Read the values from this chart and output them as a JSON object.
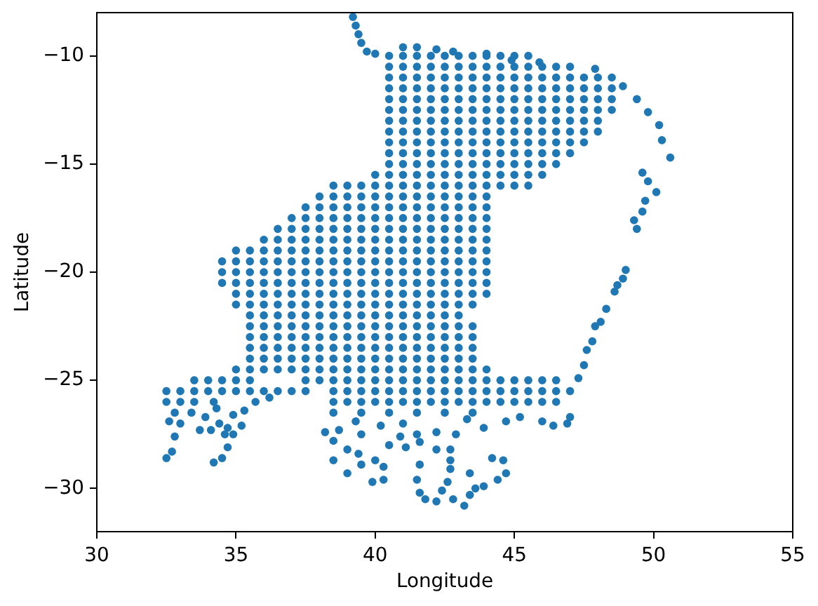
{
  "chart_data": {
    "type": "scatter",
    "xlabel": "Longitude",
    "ylabel": "Latitude",
    "xlim": [
      30,
      55
    ],
    "ylim": [
      -32,
      -8
    ],
    "xticks": [
      30,
      35,
      40,
      45,
      50,
      55
    ],
    "yticks": [
      {
        "value": -30,
        "label": "−30"
      },
      {
        "value": -25,
        "label": "−25"
      },
      {
        "value": -20,
        "label": "−20"
      },
      {
        "value": -15,
        "label": "−15"
      },
      {
        "value": -10,
        "label": "−10"
      }
    ],
    "marker": "circle",
    "series": [
      {
        "color": "#1f77b4",
        "x": [
          40.5,
          41,
          41.5,
          42,
          42.5,
          43,
          43.5,
          44,
          44.5,
          45,
          45.5,
          40.5,
          41,
          41.5,
          42,
          42.5,
          43,
          43.5,
          44,
          44.5,
          45,
          45.5,
          46,
          46.5,
          47,
          40.5,
          41,
          41.5,
          42,
          42.5,
          43,
          43.5,
          44,
          44.5,
          45,
          45.5,
          46,
          46.5,
          47,
          47.5,
          48,
          48.5,
          40.5,
          41,
          41.5,
          42,
          42.5,
          43,
          43.5,
          44,
          44.5,
          45,
          45.5,
          46,
          46.5,
          47,
          47.5,
          48,
          48.5,
          40.5,
          41,
          41.5,
          42,
          42.5,
          43,
          43.5,
          44,
          44.5,
          45,
          45.5,
          46,
          46.5,
          47,
          47.5,
          48,
          48.5,
          40.5,
          41,
          41.5,
          42,
          42.5,
          43,
          43.5,
          44,
          44.5,
          45,
          45.5,
          46,
          46.5,
          47,
          47.5,
          48,
          48.5,
          40.5,
          41,
          41.5,
          42,
          42.5,
          43,
          43.5,
          44,
          44.5,
          45,
          45.5,
          46,
          46.5,
          47,
          47.5,
          48,
          40.5,
          41,
          41.5,
          42,
          42.5,
          43,
          43.5,
          44,
          44.5,
          45,
          45.5,
          46,
          46.5,
          47,
          47.5,
          48,
          40.5,
          41,
          41.5,
          42,
          42.5,
          43,
          43.5,
          44,
          44.5,
          45,
          45.5,
          46,
          46.5,
          47,
          47.5,
          40.5,
          41,
          41.5,
          42,
          42.5,
          43,
          43.5,
          44,
          44.5,
          45,
          45.5,
          46,
          46.5,
          47,
          40.5,
          41,
          41.5,
          42,
          42.5,
          43,
          43.5,
          44,
          44.5,
          45,
          45.5,
          46,
          46.5,
          40,
          40.5,
          41,
          41.5,
          42,
          42.5,
          43,
          43.5,
          44,
          44.5,
          45,
          45.5,
          46,
          38.5,
          39,
          39.5,
          40,
          40.5,
          41,
          41.5,
          42,
          42.5,
          43,
          43.5,
          44,
          44.5,
          45,
          45.5,
          38,
          38.5,
          39,
          39.5,
          40,
          40.5,
          41,
          41.5,
          42,
          42.5,
          43,
          43.5,
          44,
          37.5,
          38,
          38.5,
          39,
          39.5,
          40,
          40.5,
          41,
          41.5,
          42,
          42.5,
          43,
          43.5,
          44,
          37,
          37.5,
          38,
          38.5,
          39,
          39.5,
          40,
          40.5,
          41,
          41.5,
          42,
          42.5,
          43,
          43.5,
          44,
          36.5,
          37,
          37.5,
          38,
          38.5,
          39,
          39.5,
          40,
          40.5,
          41,
          41.5,
          42,
          42.5,
          43,
          43.5,
          44,
          36,
          36.5,
          37,
          37.5,
          38,
          38.5,
          39,
          39.5,
          40,
          40.5,
          41,
          41.5,
          42,
          42.5,
          43,
          43.5,
          44,
          35,
          35.5,
          36,
          36.5,
          37,
          37.5,
          38,
          38.5,
          39,
          39.5,
          40,
          40.5,
          41,
          41.5,
          42,
          42.5,
          43,
          43.5,
          44,
          34.5,
          35,
          35.5,
          36,
          36.5,
          37,
          37.5,
          38,
          38.5,
          39,
          39.5,
          40,
          40.5,
          41,
          41.5,
          42,
          42.5,
          43,
          43.5,
          44,
          34.5,
          35,
          35.5,
          36,
          36.5,
          37,
          37.5,
          38,
          38.5,
          39,
          39.5,
          40,
          40.5,
          41,
          41.5,
          42,
          42.5,
          43,
          43.5,
          44,
          34.5,
          35,
          35.5,
          36,
          36.5,
          37,
          37.5,
          38,
          38.5,
          39,
          39.5,
          40,
          40.5,
          41,
          41.5,
          42,
          42.5,
          43,
          43.5,
          44,
          35,
          35.5,
          36,
          36.5,
          37,
          37.5,
          38,
          38.5,
          39,
          39.5,
          40,
          40.5,
          41,
          41.5,
          42,
          42.5,
          43,
          43.5,
          44,
          35,
          35.5,
          36,
          36.5,
          37,
          37.5,
          38,
          38.5,
          39,
          39.5,
          40,
          40.5,
          41,
          41.5,
          42,
          42.5,
          43,
          43.5,
          35.5,
          36,
          36.5,
          37,
          37.5,
          38,
          38.5,
          39,
          39.5,
          40,
          40.5,
          41,
          41.5,
          42,
          42.5,
          43,
          35.5,
          36,
          36.5,
          37,
          37.5,
          38,
          38.5,
          39,
          39.5,
          40,
          40.5,
          41,
          41.5,
          42,
          42.5,
          43,
          43.5,
          35.5,
          36,
          36.5,
          37,
          37.5,
          38,
          38.5,
          39,
          39.5,
          40,
          40.5,
          41,
          41.5,
          42,
          42.5,
          43,
          43.5,
          35.5,
          36,
          36.5,
          37,
          37.5,
          38,
          38.5,
          39,
          39.5,
          40,
          40.5,
          41,
          41.5,
          42,
          42.5,
          43,
          43.5,
          35.5,
          36,
          36.5,
          37,
          37.5,
          38,
          38.5,
          39,
          39.5,
          40,
          40.5,
          41,
          41.5,
          42,
          42.5,
          43,
          43.5,
          35,
          35.5,
          36,
          36.5,
          37,
          37.5,
          38,
          38.5,
          39,
          39.5,
          40,
          40.5,
          41,
          41.5,
          42,
          42.5,
          43,
          43.5,
          44,
          33.5,
          34,
          34.5,
          35,
          35.5,
          37.5,
          38,
          38.5,
          39,
          39.5,
          40,
          40.5,
          41,
          41.5,
          42,
          42.5,
          43,
          43.5,
          44,
          44.5,
          45,
          45.5,
          46,
          46.5,
          32.5,
          33,
          33.5,
          34,
          34.5,
          35,
          35.5,
          36,
          36.5,
          37,
          37.5,
          38.5,
          39,
          39.5,
          40,
          40.5,
          41,
          41.5,
          42,
          42.5,
          43,
          43.5,
          44,
          44.5,
          45,
          45.5,
          46,
          46.5,
          47,
          32.5,
          33,
          33.5,
          38.5,
          39,
          39.5,
          40,
          40.5,
          41,
          41.5,
          42,
          42.5,
          43,
          43.5,
          44,
          44.5,
          45,
          45.5,
          46,
          46.5,
          38.5,
          39.5,
          40.5,
          41.5,
          42.5,
          43.5,
          39.2,
          39.3,
          39.4,
          39.5,
          39.7,
          40.0,
          41.0,
          41.5,
          42.2,
          42.8,
          44.0,
          44.9,
          45.9,
          47.9,
          48.9,
          49.4,
          49.8,
          50.2,
          50.3,
          50.6,
          49.6,
          49.8,
          50.1,
          49.7,
          49.6,
          49.3,
          49.4,
          49.0,
          48.9,
          48.7,
          48.6,
          48.3,
          48.1,
          47.9,
          47.8,
          47.6,
          47.5,
          47.3,
          47.0,
          46.9,
          46.4,
          46.0,
          45.2,
          44.7,
          32.8,
          33.0,
          32.5,
          32.7,
          32.8,
          32.6,
          33.4,
          33.7,
          34.1,
          33.9,
          34.2,
          34.3,
          34.4,
          34.7,
          34.6,
          34.9,
          34.7,
          34.5,
          34.2,
          34.9,
          35.2,
          35.3,
          35.7,
          36.2,
          38.2,
          38.5,
          38.7,
          38.5,
          39.0,
          39.0,
          39.5,
          39.4,
          39.5,
          40.0,
          39.9,
          40.3,
          40.3,
          40.2,
          40.5,
          40.9,
          41.0,
          41.1,
          41.5,
          41.6,
          42.2,
          42.2,
          42.7,
          42.7,
          42.9,
          41.6,
          41.5,
          41.6,
          41.8,
          42.2,
          42.4,
          42.6,
          42.7,
          42.8,
          43.2,
          43.4,
          43.6,
          43.9,
          43.4,
          44.2,
          44.6,
          44.7,
          44.4,
          43.9,
          43.3,
          39.3
        ],
        "values": [
          -10,
          -10,
          -10,
          -10,
          -10,
          -10,
          -10,
          -10,
          -10,
          -10,
          -10,
          -10.5,
          -10.5,
          -10.5,
          -10.5,
          -10.5,
          -10.5,
          -10.5,
          -10.5,
          -10.5,
          -10.5,
          -10.5,
          -10.5,
          -10.5,
          -10.5,
          -11,
          -11,
          -11,
          -11,
          -11,
          -11,
          -11,
          -11,
          -11,
          -11,
          -11,
          -11,
          -11,
          -11,
          -11,
          -11,
          -11,
          -11.5,
          -11.5,
          -11.5,
          -11.5,
          -11.5,
          -11.5,
          -11.5,
          -11.5,
          -11.5,
          -11.5,
          -11.5,
          -11.5,
          -11.5,
          -11.5,
          -11.5,
          -11.5,
          -11.5,
          -12,
          -12,
          -12,
          -12,
          -12,
          -12,
          -12,
          -12,
          -12,
          -12,
          -12,
          -12,
          -12,
          -12,
          -12,
          -12,
          -12,
          -12.5,
          -12.5,
          -12.5,
          -12.5,
          -12.5,
          -12.5,
          -12.5,
          -12.5,
          -12.5,
          -12.5,
          -12.5,
          -12.5,
          -12.5,
          -12.5,
          -12.5,
          -12.5,
          -12.5,
          -13,
          -13,
          -13,
          -13,
          -13,
          -13,
          -13,
          -13,
          -13,
          -13,
          -13,
          -13,
          -13,
          -13,
          -13,
          -13,
          -13.5,
          -13.5,
          -13.5,
          -13.5,
          -13.5,
          -13.5,
          -13.5,
          -13.5,
          -13.5,
          -13.5,
          -13.5,
          -13.5,
          -13.5,
          -13.5,
          -13.5,
          -13.5,
          -14,
          -14,
          -14,
          -14,
          -14,
          -14,
          -14,
          -14,
          -14,
          -14,
          -14,
          -14,
          -14,
          -14,
          -14,
          -14.5,
          -14.5,
          -14.5,
          -14.5,
          -14.5,
          -14.5,
          -14.5,
          -14.5,
          -14.5,
          -14.5,
          -14.5,
          -14.5,
          -14.5,
          -14.5,
          -15,
          -15,
          -15,
          -15,
          -15,
          -15,
          -15,
          -15,
          -15,
          -15,
          -15,
          -15,
          -15,
          -15.5,
          -15.5,
          -15.5,
          -15.5,
          -15.5,
          -15.5,
          -15.5,
          -15.5,
          -15.5,
          -15.5,
          -15.5,
          -15.5,
          -15.5,
          -16,
          -16,
          -16,
          -16,
          -16,
          -16,
          -16,
          -16,
          -16,
          -16,
          -16,
          -16,
          -16,
          -16,
          -16,
          -16.5,
          -16.5,
          -16.5,
          -16.5,
          -16.5,
          -16.5,
          -16.5,
          -16.5,
          -16.5,
          -16.5,
          -16.5,
          -16.5,
          -16.5,
          -17,
          -17,
          -17,
          -17,
          -17,
          -17,
          -17,
          -17,
          -17,
          -17,
          -17,
          -17,
          -17,
          -17,
          -17.5,
          -17.5,
          -17.5,
          -17.5,
          -17.5,
          -17.5,
          -17.5,
          -17.5,
          -17.5,
          -17.5,
          -17.5,
          -17.5,
          -17.5,
          -17.5,
          -17.5,
          -18,
          -18,
          -18,
          -18,
          -18,
          -18,
          -18,
          -18,
          -18,
          -18,
          -18,
          -18,
          -18,
          -18,
          -18,
          -18,
          -18.5,
          -18.5,
          -18.5,
          -18.5,
          -18.5,
          -18.5,
          -18.5,
          -18.5,
          -18.5,
          -18.5,
          -18.5,
          -18.5,
          -18.5,
          -18.5,
          -18.5,
          -18.5,
          -18.5,
          -19,
          -19,
          -19,
          -19,
          -19,
          -19,
          -19,
          -19,
          -19,
          -19,
          -19,
          -19,
          -19,
          -19,
          -19,
          -19,
          -19,
          -19,
          -19,
          -19.5,
          -19.5,
          -19.5,
          -19.5,
          -19.5,
          -19.5,
          -19.5,
          -19.5,
          -19.5,
          -19.5,
          -19.5,
          -19.5,
          -19.5,
          -19.5,
          -19.5,
          -19.5,
          -19.5,
          -19.5,
          -19.5,
          -19.5,
          -20,
          -20,
          -20,
          -20,
          -20,
          -20,
          -20,
          -20,
          -20,
          -20,
          -20,
          -20,
          -20,
          -20,
          -20,
          -20,
          -20,
          -20,
          -20,
          -20,
          -20.5,
          -20.5,
          -20.5,
          -20.5,
          -20.5,
          -20.5,
          -20.5,
          -20.5,
          -20.5,
          -20.5,
          -20.5,
          -20.5,
          -20.5,
          -20.5,
          -20.5,
          -20.5,
          -20.5,
          -20.5,
          -20.5,
          -20.5,
          -21,
          -21,
          -21,
          -21,
          -21,
          -21,
          -21,
          -21,
          -21,
          -21,
          -21,
          -21,
          -21,
          -21,
          -21,
          -21,
          -21,
          -21,
          -21,
          -21.5,
          -21.5,
          -21.5,
          -21.5,
          -21.5,
          -21.5,
          -21.5,
          -21.5,
          -21.5,
          -21.5,
          -21.5,
          -21.5,
          -21.5,
          -21.5,
          -21.5,
          -21.5,
          -21.5,
          -21.5,
          -22,
          -22,
          -22,
          -22,
          -22,
          -22,
          -22,
          -22,
          -22,
          -22,
          -22,
          -22,
          -22,
          -22,
          -22,
          -22,
          -22.5,
          -22.5,
          -22.5,
          -22.5,
          -22.5,
          -22.5,
          -22.5,
          -22.5,
          -22.5,
          -22.5,
          -22.5,
          -22.5,
          -22.5,
          -22.5,
          -22.5,
          -22.5,
          -22.5,
          -23,
          -23,
          -23,
          -23,
          -23,
          -23,
          -23,
          -23,
          -23,
          -23,
          -23,
          -23,
          -23,
          -23,
          -23,
          -23,
          -23,
          -23.5,
          -23.5,
          -23.5,
          -23.5,
          -23.5,
          -23.5,
          -23.5,
          -23.5,
          -23.5,
          -23.5,
          -23.5,
          -23.5,
          -23.5,
          -23.5,
          -23.5,
          -23.5,
          -23.5,
          -24,
          -24,
          -24,
          -24,
          -24,
          -24,
          -24,
          -24,
          -24,
          -24,
          -24,
          -24,
          -24,
          -24,
          -24,
          -24,
          -24,
          -24.5,
          -24.5,
          -24.5,
          -24.5,
          -24.5,
          -24.5,
          -24.5,
          -24.5,
          -24.5,
          -24.5,
          -24.5,
          -24.5,
          -24.5,
          -24.5,
          -24.5,
          -24.5,
          -24.5,
          -24.5,
          -24.5,
          -25,
          -25,
          -25,
          -25,
          -25,
          -25,
          -25,
          -25,
          -25,
          -25,
          -25,
          -25,
          -25,
          -25,
          -25,
          -25,
          -25,
          -25,
          -25,
          -25,
          -25,
          -25,
          -25,
          -25,
          -25.5,
          -25.5,
          -25.5,
          -25.5,
          -25.5,
          -25.5,
          -25.5,
          -25.5,
          -25.5,
          -25.5,
          -25.5,
          -25.5,
          -25.5,
          -25.5,
          -25.5,
          -25.5,
          -25.5,
          -25.5,
          -25.5,
          -25.5,
          -25.5,
          -25.5,
          -25.5,
          -25.5,
          -25.5,
          -25.5,
          -25.5,
          -25.5,
          -25.5,
          -26,
          -26,
          -26,
          -26,
          -26,
          -26,
          -26,
          -26,
          -26,
          -26,
          -26,
          -26,
          -26,
          -26,
          -26,
          -26,
          -26,
          -26,
          -26,
          -26,
          -26.5,
          -26.5,
          -26.5,
          -26.5,
          -26.5,
          -26.5,
          -8.2,
          -8.6,
          -9.0,
          -9.4,
          -9.8,
          -9.9,
          -9.6,
          -9.6,
          -9.7,
          -9.8,
          -9.9,
          -10.2,
          -10.3,
          -10.6,
          -11.4,
          -12.0,
          -12.6,
          -13.2,
          -13.9,
          -14.7,
          -15.4,
          -15.8,
          -16.3,
          -16.7,
          -17.2,
          -17.6,
          -18.0,
          -19.9,
          -20.3,
          -20.6,
          -20.9,
          -21.7,
          -22.3,
          -22.5,
          -23.2,
          -23.6,
          -24.3,
          -24.9,
          -26.7,
          -27.0,
          -27.1,
          -26.9,
          -26.7,
          -26.9,
          -26.5,
          -27.0,
          -28.6,
          -28.3,
          -27.6,
          -26.9,
          -26.5,
          -27.3,
          -27.3,
          -26.7,
          -26.0,
          -26.3,
          -27.0,
          -27.2,
          -27.5,
          -27.5,
          -28.1,
          -28.6,
          -28.8,
          -26.6,
          -27.1,
          -26.4,
          -26.0,
          -25.8,
          -27.4,
          -27.8,
          -27.3,
          -28.7,
          -29.3,
          -28.2,
          -28.9,
          -28.4,
          -27.5,
          -28.7,
          -29.7,
          -29.6,
          -29.0,
          -27.1,
          -28.0,
          -27.6,
          -27.0,
          -28.1,
          -27.5,
          -27.85,
          -27.4,
          -28.2,
          -28.2,
          -28.7,
          -27.5,
          -28.9,
          -29.6,
          -30.2,
          -30.5,
          -30.6,
          -30.1,
          -29.7,
          -29.1,
          -30.5,
          -30.8,
          -30.3,
          -30.0,
          -29.9,
          -29.3,
          -28.6,
          -28.7,
          -29.3,
          -29.6,
          -27.2,
          -26.8,
          -26.9
        ]
      }
    ]
  }
}
